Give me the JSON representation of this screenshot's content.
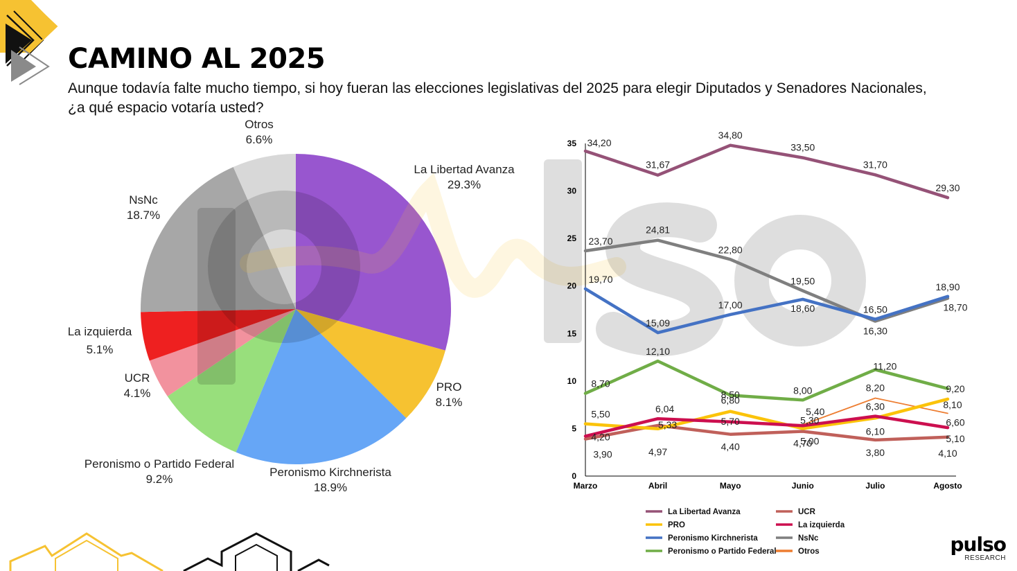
{
  "header": {
    "title": "CAMINO AL 2025",
    "subtitle_lines": [
      "Aunque todavía falte mucho tiempo, si hoy fueran las elecciones legislativas del 2025 para elegir Diputados y Senadores Nacionales,",
      "¿a qué espacio votaría usted?"
    ]
  },
  "brand": {
    "name": "pulso",
    "sub": "RESEARCH",
    "color": "#f6c232"
  },
  "chart_data": [
    {
      "type": "pie",
      "title": "",
      "start_angle": "12 o'clock",
      "direction": "clockwise",
      "slices": [
        {
          "label": "La Libertad Avanza",
          "pct_text": "29.3%",
          "value": 29.3,
          "color": "#9856cf"
        },
        {
          "label": "PRO",
          "pct_text": "8.1%",
          "value": 8.1,
          "color": "#f6c231"
        },
        {
          "label": "Peronismo Kirchnerista",
          "pct_text": "18.9%",
          "value": 18.9,
          "color": "#66a6f6"
        },
        {
          "label": "Peronismo o Partido Federal",
          "pct_text": "9.2%",
          "value": 9.2,
          "color": "#98df7c"
        },
        {
          "label": "UCR",
          "pct_text": "4.1%",
          "value": 4.1,
          "color": "#f2929e"
        },
        {
          "label": "La izquierda",
          "pct_text": "5.1%",
          "value": 5.1,
          "color": "#ee2020"
        },
        {
          "label": "NsNc",
          "pct_text": "18.7%",
          "value": 18.7,
          "color": "#a7a7a7"
        },
        {
          "label": "Otros",
          "pct_text": "6.6%",
          "value": 6.6,
          "color": "#d8d8d8"
        }
      ]
    },
    {
      "type": "line",
      "title": "",
      "categories": [
        "Marzo",
        "Abril",
        "Mayo",
        "Junio",
        "Julio",
        "Agosto"
      ],
      "ylim": [
        0,
        35
      ],
      "yticks": [
        "0",
        "5",
        "10",
        "15",
        "20",
        "25",
        "30",
        "35"
      ],
      "ytick_values": [
        0,
        5,
        10,
        15,
        20,
        25,
        30,
        35
      ],
      "grid": false,
      "legend_position": "bottom",
      "series": [
        {
          "name": "La Libertad Avanza",
          "color": "#955277",
          "values": [
            34.2,
            31.67,
            34.8,
            33.5,
            31.7,
            29.3
          ],
          "labels": [
            "34,20",
            "31,67",
            "34,80",
            "33,50",
            "31,70",
            "29,30"
          ]
        },
        {
          "name": "UCR",
          "color": "#c0605a",
          "values": [
            3.9,
            5.33,
            4.4,
            4.7,
            3.8,
            4.1
          ],
          "labels": [
            "3,90",
            "5,33",
            "4,40",
            "4,70",
            "3,80",
            "4,10"
          ]
        },
        {
          "name": "PRO",
          "color": "#fbc30a",
          "values": [
            5.5,
            4.97,
            6.8,
            5.0,
            6.1,
            8.1
          ],
          "labels": [
            "5,50",
            "4,97",
            "6,80",
            "5,00",
            "6,10",
            "8,10"
          ]
        },
        {
          "name": "La izquierda",
          "color": "#cc0f4f",
          "values": [
            4.2,
            6.04,
            5.7,
            5.3,
            6.3,
            5.1
          ],
          "labels": [
            "4,20",
            "6,04",
            "5,70",
            "5,30",
            "6,30",
            "5,10"
          ]
        },
        {
          "name": "Peronismo Kirchnerista",
          "color": "#4472c4",
          "values": [
            19.7,
            15.09,
            17.0,
            18.6,
            16.5,
            18.9
          ],
          "labels": [
            "19,70",
            "15,09",
            "17,00",
            "18,60",
            "16,50",
            "18,90"
          ]
        },
        {
          "name": "NsNc",
          "color": "#7f7f7f",
          "values": [
            23.7,
            24.81,
            22.8,
            19.5,
            16.3,
            18.7
          ],
          "labels": [
            "23,70",
            "24,81",
            "22,80",
            "19,50",
            "16,30",
            "18,70"
          ]
        },
        {
          "name": "Peronismo o Partido Federal",
          "color": "#70ad47",
          "values": [
            8.7,
            12.1,
            8.5,
            8.0,
            11.2,
            9.2
          ],
          "labels": [
            "8,70",
            "12,10",
            "8,50",
            "8,00",
            "11,20",
            "9,20"
          ]
        },
        {
          "name": "Otros",
          "color": "#ed7d31",
          "values": [
            null,
            null,
            null,
            5.4,
            8.2,
            6.6
          ],
          "labels": [
            null,
            null,
            null,
            "5,40",
            "8,20",
            "6,60"
          ]
        }
      ]
    }
  ]
}
